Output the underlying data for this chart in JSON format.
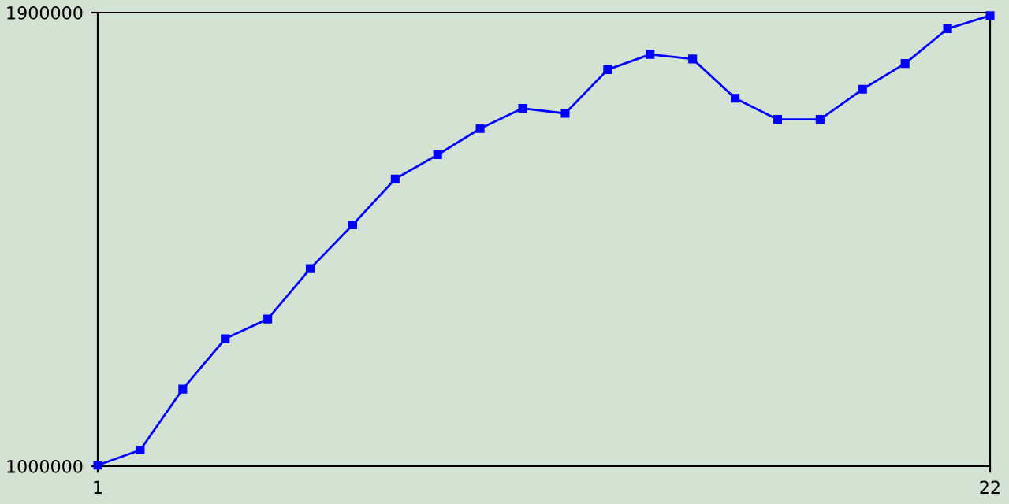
{
  "chart_data": {
    "type": "line",
    "x": [
      1,
      2,
      3,
      4,
      5,
      6,
      7,
      8,
      9,
      10,
      11,
      12,
      13,
      14,
      15,
      16,
      17,
      18,
      19,
      20,
      21,
      22
    ],
    "series": [
      {
        "color": "#0000ff",
        "values": [
          1002000,
          1032000,
          1153000,
          1253000,
          1292000,
          1392000,
          1479000,
          1570000,
          1618000,
          1670000,
          1710000,
          1700000,
          1787000,
          1817000,
          1808000,
          1730000,
          1688000,
          1688000,
          1748000,
          1799000,
          1868000,
          1894000
        ]
      }
    ],
    "xlim": [
      1,
      22
    ],
    "xticks": [
      1,
      22
    ],
    "ylim": [
      1000000,
      1900000
    ],
    "yticks": [
      1000000,
      1900000
    ],
    "marker": "square",
    "line_style": "solid",
    "grid": false,
    "legend": false
  }
}
